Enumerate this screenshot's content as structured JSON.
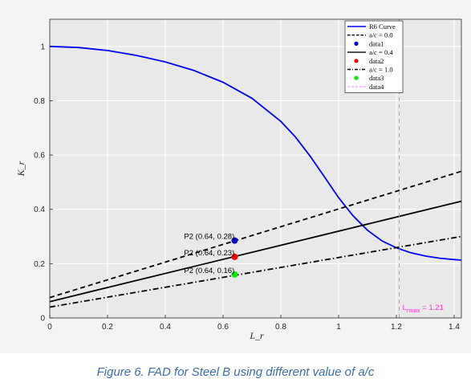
{
  "caption": "Figure 6. FAD for Steel B using different value of a/c",
  "chart_data": {
    "type": "line",
    "title": "",
    "xlabel": "L_r",
    "ylabel": "K_r",
    "xlim": [
      0,
      1.425
    ],
    "ylim": [
      0,
      1.1
    ],
    "x_ticks": [
      "0",
      "0.2",
      "0.4",
      "0.6",
      "0.8",
      "1",
      "1.2",
      "1.4"
    ],
    "x_tick_values": [
      0,
      0.2,
      0.4,
      0.6,
      0.8,
      1.0,
      1.2,
      1.4
    ],
    "y_ticks": [
      "0",
      "0.2",
      "0.4",
      "0.6",
      "0.8",
      "1"
    ],
    "y_tick_values": [
      0,
      0.2,
      0.4,
      0.6,
      0.8,
      1.0
    ],
    "grid": true,
    "legend_position": "top-right",
    "background": "#e9e9e9",
    "series": [
      {
        "name": "R6 Curve",
        "kind": "line",
        "color": "#0000ff",
        "dash": "solid",
        "x": [
          0,
          0.1,
          0.2,
          0.3,
          0.4,
          0.5,
          0.6,
          0.7,
          0.8,
          0.85,
          0.9,
          0.95,
          1.0,
          1.05,
          1.1,
          1.15,
          1.2,
          1.25,
          1.3,
          1.35,
          1.4,
          1.425
        ],
        "y": [
          1.0,
          0.996,
          0.985,
          0.967,
          0.943,
          0.911,
          0.868,
          0.809,
          0.724,
          0.667,
          0.598,
          0.521,
          0.443,
          0.376,
          0.323,
          0.284,
          0.258,
          0.24,
          0.228,
          0.22,
          0.215,
          0.213
        ]
      },
      {
        "name": "a/c = 0.0",
        "kind": "line",
        "color": "#000000",
        "dash": "dashed",
        "x": [
          0,
          1.425
        ],
        "y": [
          0.075,
          0.54
        ]
      },
      {
        "name": "data1",
        "kind": "point",
        "color": "#0000cc",
        "x": [
          0.64
        ],
        "y": [
          0.285
        ]
      },
      {
        "name": "a/c = 0.4",
        "kind": "line",
        "color": "#000000",
        "dash": "solid",
        "x": [
          0,
          1.425
        ],
        "y": [
          0.06,
          0.43
        ]
      },
      {
        "name": "data2",
        "kind": "point",
        "color": "#ff0000",
        "x": [
          0.64
        ],
        "y": [
          0.225
        ]
      },
      {
        "name": "a/c = 1.0",
        "kind": "line",
        "color": "#000000",
        "dash": "dashdot",
        "x": [
          0,
          1.425
        ],
        "y": [
          0.04,
          0.3
        ]
      },
      {
        "name": "data3",
        "kind": "point",
        "color": "#00ee00",
        "x": [
          0.64
        ],
        "y": [
          0.16
        ]
      },
      {
        "name": "data4",
        "kind": "vline",
        "color": "#ff66ff",
        "dash": "dashed",
        "x": [
          1.21,
          1.21
        ],
        "y": [
          0,
          1.1
        ]
      }
    ],
    "annotations": [
      {
        "text": "P2 (0.64, 0.28)",
        "x": 0.64,
        "y": 0.285
      },
      {
        "text": "P2 (0.64, 0.23)",
        "x": 0.64,
        "y": 0.225
      },
      {
        "text": "P2 (0.64, 0.16)",
        "x": 0.64,
        "y": 0.16
      }
    ],
    "lrmax_label": {
      "prefix": "L",
      "sub": "rmax",
      "suffix": " = 1.21",
      "x": 1.21,
      "y": 0.03
    }
  }
}
